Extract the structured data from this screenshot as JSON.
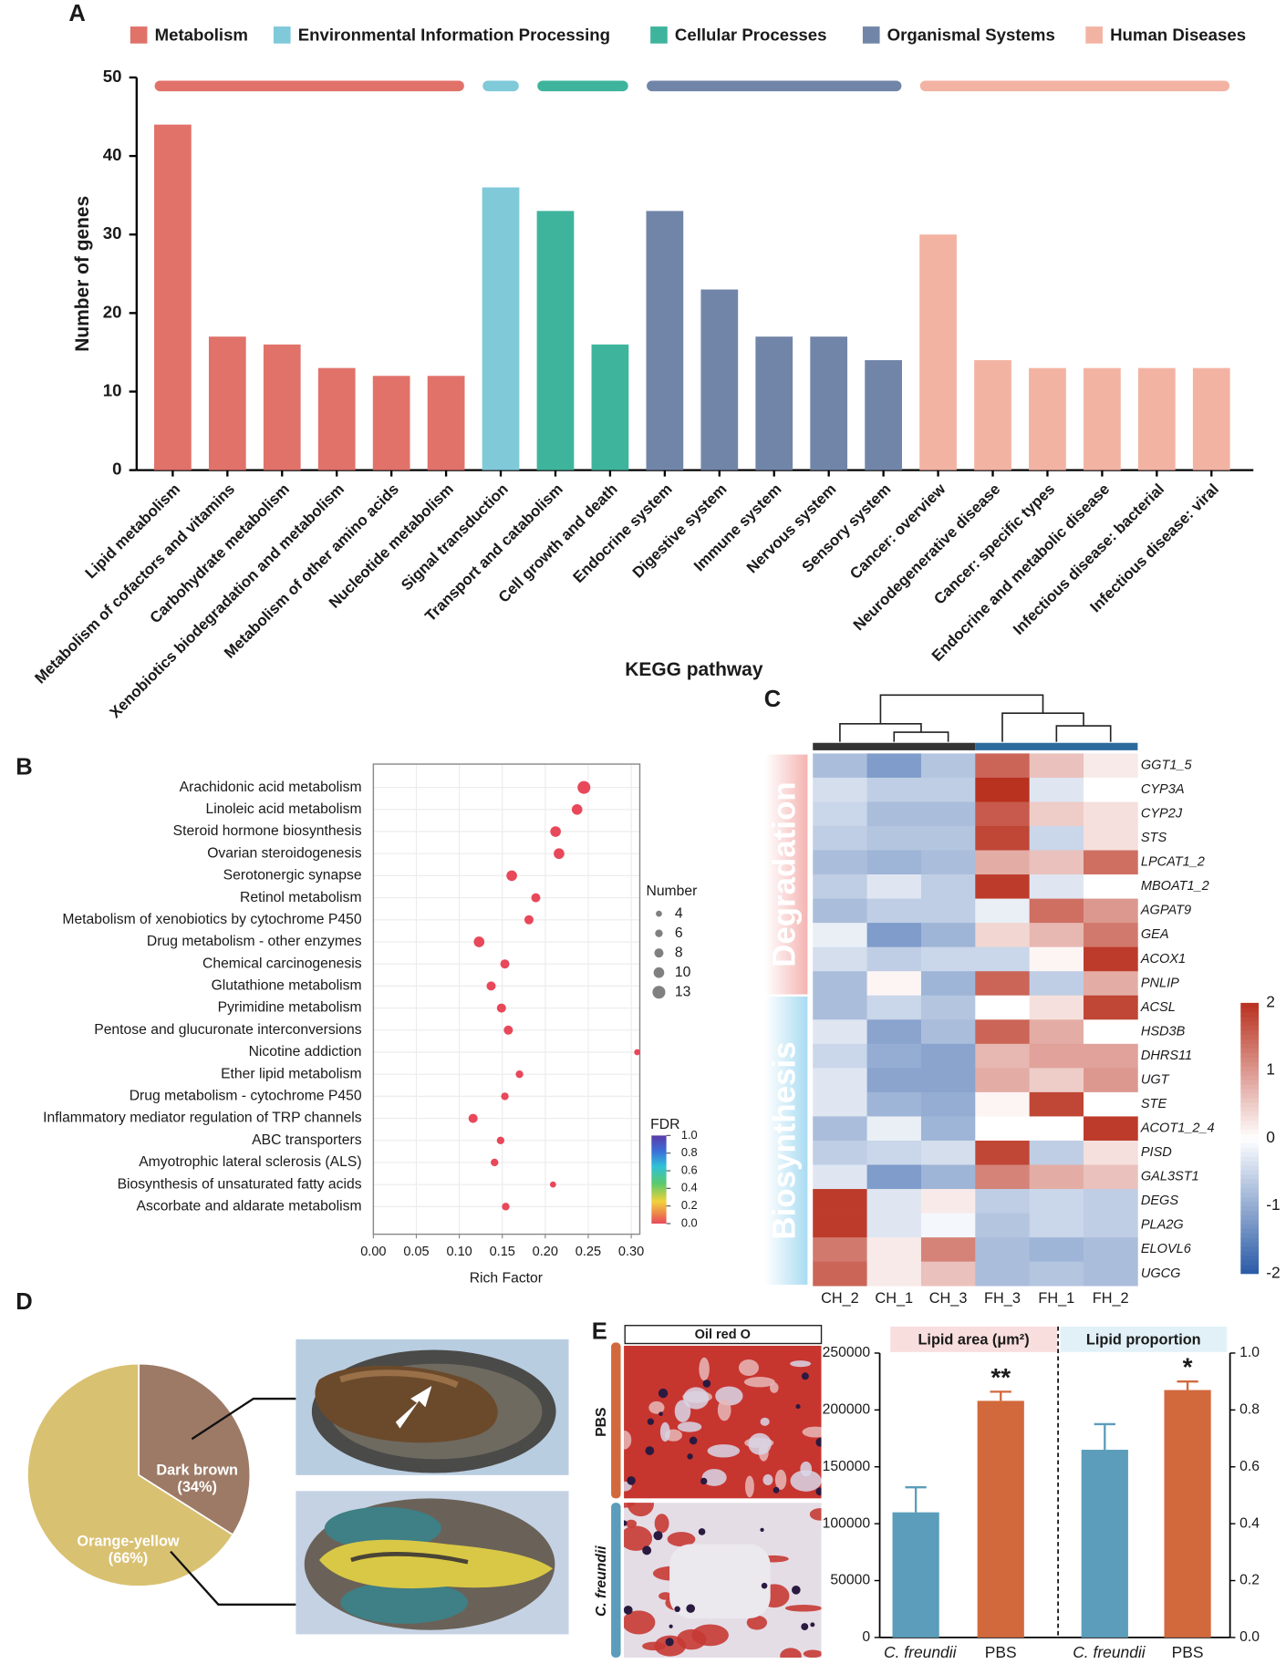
{
  "chart_data": [
    {
      "type": "bar",
      "panel": "A",
      "legend": [
        {
          "name": "Metabolism",
          "color": "#e0726a"
        },
        {
          "name": "Environmental Information Processing",
          "color": "#7fc9d9"
        },
        {
          "name": "Cellular Processes",
          "color": "#3fb49d"
        },
        {
          "name": "Organismal Systems",
          "color": "#7185a8"
        },
        {
          "name": "Human Diseases",
          "color": "#f3b3a3"
        }
      ],
      "categories": [
        "Lipid metabolism",
        "Metabolism of cofactors and vitamins",
        "Carbohydrate metabolism",
        "Xenobiotics biodegradation and metabolism",
        "Metabolism of other amino acids",
        "Nucleotide metabolism",
        "Signal transduction",
        "Transport and catabolism",
        "Cell growth and death",
        "Endocrine system",
        "Digestive system",
        "Immune system",
        "Nervous system",
        "Sensory system",
        "Cancer: overview",
        "Neurodegenerative disease",
        "Cancer: specific types",
        "Endocrine and metabolic disease",
        "Infectious disease: bacterial",
        "Infectious disease: viral"
      ],
      "values": [
        44,
        17,
        16,
        13,
        12,
        12,
        36,
        33,
        16,
        33,
        23,
        17,
        17,
        14,
        30,
        14,
        13,
        13,
        13,
        13
      ],
      "colors": [
        "#e0726a",
        "#e0726a",
        "#e0726a",
        "#e0726a",
        "#e0726a",
        "#e0726a",
        "#7fc9d9",
        "#3fb49d",
        "#3fb49d",
        "#7185a8",
        "#7185a8",
        "#7185a8",
        "#7185a8",
        "#7185a8",
        "#f3b3a3",
        "#f3b3a3",
        "#f3b3a3",
        "#f3b3a3",
        "#f3b3a3",
        "#f3b3a3"
      ],
      "ylim": [
        0,
        50
      ],
      "yticks": [
        0,
        10,
        20,
        30,
        40,
        50
      ],
      "ylabel": "Number of genes",
      "xlabel": "KEGG pathway"
    },
    {
      "type": "scatter",
      "panel": "B",
      "categories": [
        "Arachidonic acid metabolism",
        "Linoleic acid metabolism",
        "Steroid hormone biosynthesis",
        "Ovarian steroidogenesis",
        "Serotonergic synapse",
        "Retinol metabolism",
        "Metabolism of xenobiotics by cytochrome P450",
        "Drug metabolism - other enzymes",
        "Chemical carcinogenesis",
        "Glutathione metabolism",
        "Pyrimidine metabolism",
        "Pentose and glucuronate interconversions",
        "Nicotine addiction",
        "Ether lipid metabolism",
        "Drug metabolism - cytochrome P450",
        "Inflammatory mediator regulation of TRP channels",
        "ABC transporters",
        "Amyotrophic lateral sclerosis (ALS)",
        "Biosynthesis of unsaturated fatty acids",
        "Ascorbate and aldarate metabolism"
      ],
      "values": [
        0.245,
        0.237,
        0.212,
        0.216,
        0.161,
        0.189,
        0.181,
        0.123,
        0.153,
        0.137,
        0.149,
        0.157,
        0.307,
        0.17,
        0.153,
        0.116,
        0.148,
        0.141,
        0.209,
        0.154
      ],
      "sizes": [
        13,
        10,
        10,
        10,
        10,
        8,
        8,
        10,
        8,
        8,
        8,
        8,
        4,
        6,
        6,
        8,
        6,
        6,
        4,
        6
      ],
      "color": "#e8485a",
      "xlim": [
        0,
        0.31
      ],
      "xticks": [
        {
          "value": 0,
          "label": "0.00"
        },
        {
          "value": 0.05,
          "label": "0.05"
        },
        {
          "value": 0.1,
          "label": "0.10"
        },
        {
          "value": 0.15,
          "label": "0.15"
        },
        {
          "value": 0.2,
          "label": "0.20"
        },
        {
          "value": 0.25,
          "label": "0.25"
        },
        {
          "value": 0.3,
          "label": "0.30"
        }
      ],
      "xlabel": "Rich Factor",
      "grid": true,
      "size_legend_title": "Number",
      "size_legend": [
        4,
        6,
        8,
        10,
        13
      ],
      "colorbar": {
        "title": "FDR",
        "lim": [
          0,
          1
        ],
        "ticks": [
          {
            "value": 1,
            "label": "1.0"
          },
          {
            "value": 0.8,
            "label": "0.8"
          },
          {
            "value": 0.6,
            "label": "0.6"
          },
          {
            "value": 0.4,
            "label": "0.4"
          },
          {
            "value": 0.2,
            "label": "0.2"
          },
          {
            "value": 0,
            "label": "0.0"
          }
        ]
      }
    },
    {
      "type": "heatmap",
      "panel": "C",
      "columns": [
        "CH_2",
        "CH_1",
        "CH_3",
        "FH_3",
        "FH_1",
        "FH_2"
      ],
      "row_groups": [
        {
          "name": "Degradation",
          "rows": [
            {
              "gene": "GGT1_5",
              "values": [
                -0.8,
                -1.2,
                -0.7,
                1.5,
                0.6,
                0.2
              ]
            },
            {
              "gene": "CYP3A",
              "values": [
                -0.4,
                -0.6,
                -0.6,
                2.0,
                -0.3,
                0.0
              ]
            },
            {
              "gene": "CYP2J",
              "values": [
                -0.5,
                -0.8,
                -0.8,
                1.6,
                0.5,
                0.3
              ]
            },
            {
              "gene": "STS",
              "values": [
                -0.6,
                -0.7,
                -0.7,
                1.8,
                -0.5,
                0.3
              ]
            },
            {
              "gene": "LPCAT1_2",
              "values": [
                -0.8,
                -0.9,
                -0.8,
                0.8,
                0.6,
                1.4
              ]
            },
            {
              "gene": "MBOAT1_2",
              "values": [
                -0.6,
                -0.3,
                -0.6,
                1.9,
                -0.3,
                0.0
              ]
            },
            {
              "gene": "AGPAT9",
              "values": [
                -0.8,
                -0.6,
                -0.6,
                -0.2,
                1.4,
                1.0
              ]
            },
            {
              "gene": "GEA",
              "values": [
                -0.2,
                -1.2,
                -0.9,
                0.4,
                0.7,
                1.3
              ]
            },
            {
              "gene": "ACOX1",
              "values": [
                -0.4,
                -0.6,
                -0.5,
                -0.5,
                0.1,
                1.9
              ]
            },
            {
              "gene": "PNLIP",
              "values": [
                -0.8,
                0.1,
                -0.9,
                1.5,
                -0.6,
                0.8
              ]
            }
          ]
        },
        {
          "name": "Biosynthesis",
          "rows": [
            {
              "gene": "ACSL",
              "values": [
                -0.8,
                -0.5,
                -0.7,
                0.0,
                0.3,
                1.8
              ]
            },
            {
              "gene": "HSD3B",
              "values": [
                -0.3,
                -1.1,
                -0.8,
                1.5,
                0.8,
                0.0
              ]
            },
            {
              "gene": "DHRS11",
              "values": [
                -0.5,
                -1.0,
                -1.1,
                0.7,
                0.9,
                0.9
              ]
            },
            {
              "gene": "UGT",
              "values": [
                -0.3,
                -1.1,
                -1.1,
                0.8,
                0.5,
                1.0
              ]
            },
            {
              "gene": "STE",
              "values": [
                -0.3,
                -0.9,
                -1.0,
                0.1,
                1.8,
                0.0
              ]
            },
            {
              "gene": "ACOT1_2_4",
              "values": [
                -0.8,
                -0.2,
                -0.9,
                0.0,
                0.0,
                1.9
              ]
            },
            {
              "gene": "PISD",
              "values": [
                -0.6,
                -0.5,
                -0.4,
                1.8,
                -0.6,
                0.3
              ]
            },
            {
              "gene": "GAL3ST1",
              "values": [
                -0.3,
                -1.2,
                -0.9,
                1.2,
                0.8,
                0.6
              ]
            },
            {
              "gene": "DEGS",
              "values": [
                1.9,
                -0.3,
                0.2,
                -0.6,
                -0.5,
                -0.6
              ]
            },
            {
              "gene": "PLA2G",
              "values": [
                1.9,
                -0.3,
                -0.1,
                -0.7,
                -0.5,
                -0.6
              ]
            },
            {
              "gene": "ELOVL6",
              "values": [
                1.3,
                0.2,
                1.2,
                -0.8,
                -0.9,
                -0.8
              ]
            },
            {
              "gene": "UGCG",
              "values": [
                1.5,
                0.2,
                0.6,
                -0.8,
                -0.7,
                -0.8
              ]
            }
          ]
        }
      ],
      "zlim": [
        -2,
        2
      ],
      "zticks": [
        2,
        1,
        0,
        -1,
        -2
      ],
      "colors": [
        "#2a5aa6",
        "#ffffff",
        "#b9311f"
      ]
    },
    {
      "type": "pie",
      "panel": "D",
      "categories": [
        "Dark brown",
        "Orange-yellow"
      ],
      "values": [
        34,
        66
      ],
      "value_labels": [
        "(34%)",
        "(66%)"
      ],
      "colors": [
        "#9d7a66",
        "#d9c172"
      ]
    },
    {
      "type": "bar",
      "panel": "E",
      "image_title": "Oil red O",
      "image_rows": [
        "PBS",
        "C. freundii"
      ],
      "categories": [
        "C. freundii",
        "PBS"
      ],
      "colors": [
        "#5b9dba",
        "#d2693c"
      ],
      "series": [
        {
          "name": "Lipid area (μm²)",
          "axis": "y",
          "values": [
            110000,
            208000
          ],
          "errors": [
            22000,
            8000
          ],
          "significance": [
            null,
            "**"
          ]
        },
        {
          "name": "Lipid proportion",
          "axis": "y2",
          "values": [
            0.66,
            0.87
          ],
          "errors": [
            0.09,
            0.03
          ],
          "significance": [
            null,
            "*"
          ]
        }
      ],
      "ylim": [
        0,
        250000
      ],
      "yticks": [
        0,
        50000,
        100000,
        150000,
        200000,
        250000
      ],
      "y2lim": [
        0,
        1
      ],
      "y2ticks": [
        {
          "value": 0,
          "label": "0.0"
        },
        {
          "value": 0.2,
          "label": "0.2"
        },
        {
          "value": 0.4,
          "label": "0.4"
        },
        {
          "value": 0.6,
          "label": "0.6"
        },
        {
          "value": 0.8,
          "label": "0.8"
        },
        {
          "value": 1,
          "label": "1.0"
        }
      ]
    }
  ]
}
